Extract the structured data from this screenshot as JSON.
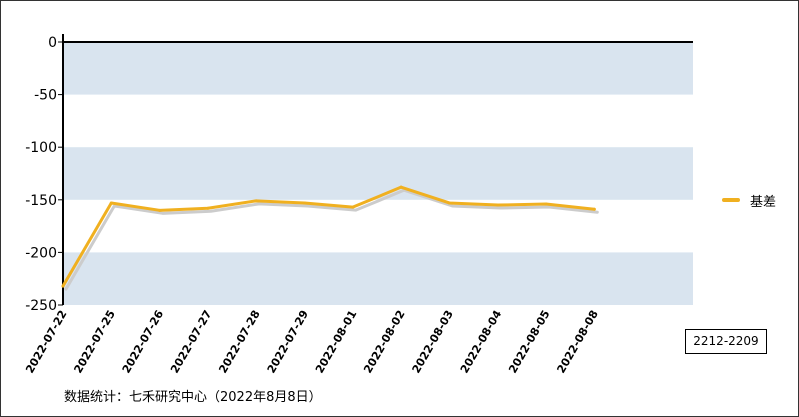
{
  "chart_data": {
    "type": "line",
    "categories": [
      "2022-07-22",
      "2022-07-25",
      "2022-07-26",
      "2022-07-27",
      "2022-07-28",
      "2022-07-29",
      "2022-08-01",
      "2022-08-02",
      "2022-08-03",
      "2022-08-04",
      "2022-08-05",
      "2022-08-08"
    ],
    "series": [
      {
        "name": "基差",
        "values": [
          -232,
          -153,
          -160,
          -158,
          -151,
          -153,
          -157,
          -138,
          -153,
          -155,
          -154,
          -159
        ]
      }
    ],
    "ylim": [
      -250,
      0
    ],
    "yticks": [
      0,
      -50,
      -100,
      -150,
      -200,
      -250
    ],
    "ytick_labels": [
      "0",
      "-50",
      "-100",
      "-150",
      "-200",
      "-250"
    ],
    "grid": "alternating horizontal bands",
    "legend_position": "right",
    "colors": {
      "line": "#f0b020",
      "shadow": "#cccccc",
      "band": "#d9e4ef",
      "axis": "#000000"
    }
  },
  "contract_label": "2212-2209",
  "source_note": "数据统计：七禾研究中心（2022年8月8日）"
}
